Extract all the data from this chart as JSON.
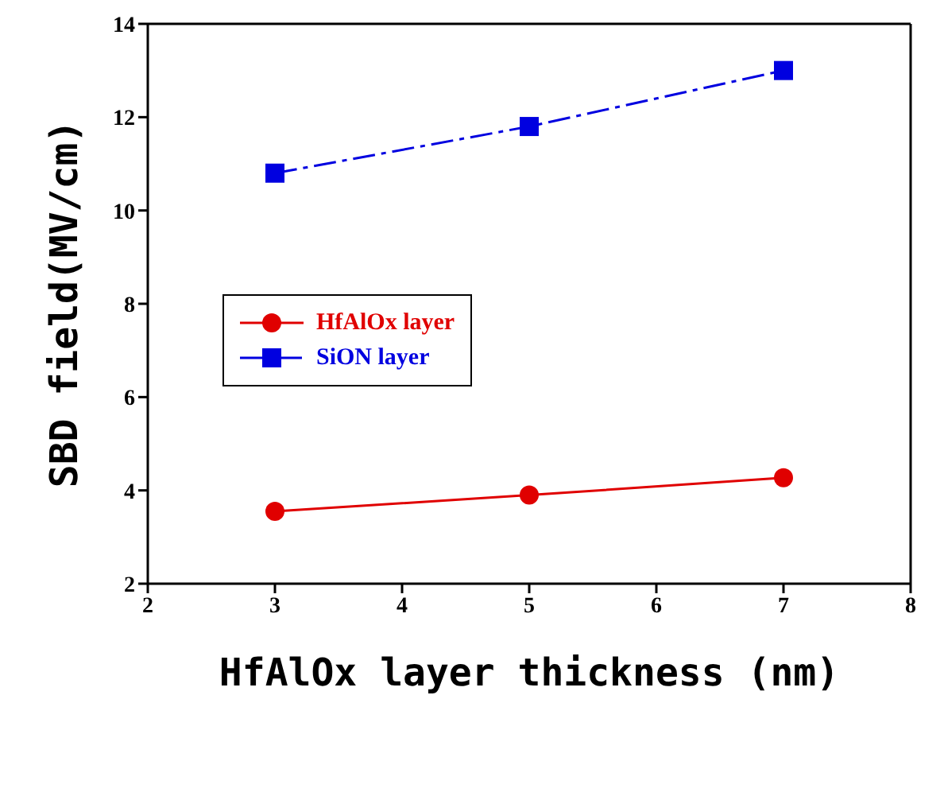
{
  "chart_data": {
    "type": "line",
    "xlabel": "HfAlOx layer thickness (nm)",
    "ylabel": "SBD field(MV/cm)",
    "xlim": [
      2,
      8
    ],
    "xticks": [
      2,
      3,
      4,
      5,
      6,
      7,
      8
    ],
    "ylim": [
      2,
      14
    ],
    "yticks": [
      2,
      4,
      6,
      8,
      10,
      12,
      14
    ],
    "legend": "center left",
    "series": [
      {
        "name": "HfAlOx layer",
        "color": "#e00000",
        "x": [
          3,
          5,
          7
        ],
        "values": [
          3.55,
          3.9,
          4.27
        ],
        "marker": "circle",
        "line_style": "solid"
      },
      {
        "name": "SiON layer",
        "color": "#0000e0",
        "x": [
          3,
          5,
          7
        ],
        "values": [
          10.8,
          11.8,
          13.0
        ],
        "marker": "square",
        "line_style": "dashed"
      }
    ]
  }
}
